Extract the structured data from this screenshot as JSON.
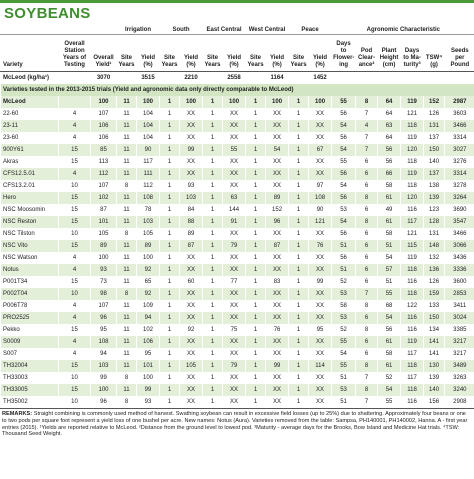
{
  "header": {
    "title": "SOYBEANS"
  },
  "table": {
    "groups": [
      {
        "label": "Irrigation",
        "start": 3
      },
      {
        "label": "South",
        "start": 5
      },
      {
        "label": "East Central",
        "start": 7
      },
      {
        "label": "West Central",
        "start": 9
      },
      {
        "label": "Peace",
        "start": 11
      },
      {
        "label": "Agronomic Characteristic",
        "start": 13
      }
    ],
    "columns": [
      "Variety",
      "Overall Station Years of Testing",
      "Overall Yield¹",
      "Site Years",
      "Yield (%)",
      "Site Years",
      "Yield (%)",
      "Site Years",
      "Yield (%)",
      "Site Years",
      "Yield (%)",
      "Site Years",
      "Yield (%)",
      "Days to Flower-ing",
      "Pod Clear-ance²",
      "Plant Height (cm)",
      "Days to Ma-turity³",
      "TSW⁴ (g)",
      "Seeds per Pound"
    ],
    "reference_row": {
      "label": "McLeod (kg/ha¹)",
      "values": [
        3070,
        3515,
        2210,
        2558,
        1164,
        1452
      ]
    },
    "section": "Varieties tested in the 2013-2015 trials (Yield and agronomic data only directly comparable to McLeod)",
    "rows": [
      [
        "McLeod",
        null,
        100,
        11,
        100,
        1,
        100,
        1,
        100,
        1,
        100,
        1,
        100,
        55,
        8,
        64,
        119,
        152,
        2987
      ],
      [
        "22-60",
        4,
        107,
        11,
        104,
        1,
        "XX",
        1,
        "XX",
        1,
        "XX",
        1,
        "XX",
        56,
        7,
        64,
        121,
        126,
        3603
      ],
      [
        "23-11",
        4,
        106,
        11,
        104,
        1,
        "XX",
        1,
        "XX",
        1,
        "XX",
        1,
        "XX",
        54,
        4,
        63,
        118,
        131,
        3466
      ],
      [
        "23-60",
        4,
        106,
        11,
        104,
        1,
        "XX",
        1,
        "XX",
        1,
        "XX",
        1,
        "XX",
        56,
        7,
        64,
        119,
        137,
        3314
      ],
      [
        "900Y61",
        15,
        85,
        11,
        90,
        1,
        99,
        1,
        55,
        1,
        54,
        1,
        67,
        54,
        7,
        56,
        120,
        150,
        3027
      ],
      [
        "Akras",
        15,
        113,
        11,
        117,
        1,
        "XX",
        1,
        "XX",
        1,
        "XX",
        1,
        "XX",
        55,
        6,
        56,
        118,
        140,
        3276
      ],
      [
        "CFS12.5.01",
        4,
        112,
        11,
        111,
        1,
        "XX",
        1,
        "XX",
        1,
        "XX",
        1,
        "XX",
        56,
        6,
        66,
        119,
        137,
        3314
      ],
      [
        "CFS13.2.01",
        10,
        107,
        8,
        112,
        1,
        93,
        1,
        "XX",
        1,
        "XX",
        1,
        97,
        54,
        6,
        58,
        118,
        138,
        3278
      ],
      [
        "Hero",
        15,
        102,
        11,
        108,
        1,
        103,
        1,
        63,
        1,
        89,
        1,
        108,
        56,
        8,
        61,
        120,
        139,
        3264
      ],
      [
        "NSC Moosomin",
        15,
        87,
        11,
        78,
        1,
        84,
        1,
        144,
        1,
        152,
        1,
        90,
        53,
        6,
        49,
        116,
        123,
        3690
      ],
      [
        "NSC Reston",
        15,
        101,
        11,
        103,
        1,
        88,
        1,
        91,
        1,
        96,
        1,
        121,
        54,
        8,
        61,
        117,
        128,
        3547
      ],
      [
        "NSC Tilston",
        10,
        105,
        8,
        105,
        1,
        89,
        1,
        "XX",
        1,
        "XX",
        1,
        "XX",
        56,
        6,
        58,
        121,
        131,
        3466
      ],
      [
        "NSC Vito",
        15,
        89,
        11,
        89,
        1,
        87,
        1,
        79,
        1,
        87,
        1,
        76,
        51,
        6,
        51,
        115,
        148,
        3066
      ],
      [
        "NSC Watson",
        4,
        100,
        11,
        100,
        1,
        "XX",
        1,
        "XX",
        1,
        "XX",
        1,
        "XX",
        56,
        6,
        54,
        119,
        132,
        3436
      ],
      [
        "Notus",
        4,
        93,
        11,
        92,
        1,
        "XX",
        1,
        "XX",
        1,
        "XX",
        1,
        "XX",
        51,
        6,
        57,
        118,
        136,
        3336
      ],
      [
        "P001T34",
        15,
        73,
        11,
        65,
        1,
        60,
        1,
        77,
        1,
        83,
        1,
        99,
        52,
        6,
        51,
        116,
        126,
        3600
      ],
      [
        "P002T04",
        10,
        98,
        8,
        92,
        1,
        "XX",
        1,
        "XX",
        1,
        "XX",
        1,
        "XX",
        53,
        7,
        55,
        118,
        159,
        2853
      ],
      [
        "P006T78",
        4,
        107,
        11,
        109,
        1,
        "XX",
        1,
        "XX",
        1,
        "XX",
        1,
        "XX",
        58,
        8,
        68,
        122,
        133,
        3411
      ],
      [
        "PRO2525",
        4,
        96,
        11,
        94,
        1,
        "XX",
        1,
        "XX",
        1,
        "XX",
        1,
        "XX",
        53,
        6,
        54,
        116,
        150,
        3024
      ],
      [
        "Pekko",
        15,
        95,
        11,
        102,
        1,
        92,
        1,
        75,
        1,
        76,
        1,
        95,
        52,
        8,
        56,
        116,
        134,
        3385
      ],
      [
        "S0009",
        4,
        108,
        11,
        106,
        1,
        "XX",
        1,
        "XX",
        1,
        "XX",
        1,
        "XX",
        55,
        6,
        61,
        119,
        141,
        3217
      ],
      [
        "S007",
        4,
        94,
        11,
        95,
        1,
        "XX",
        1,
        "XX",
        1,
        "XX",
        1,
        "XX",
        54,
        6,
        58,
        117,
        141,
        3217
      ],
      [
        "TH32004",
        15,
        103,
        11,
        101,
        1,
        105,
        1,
        79,
        1,
        99,
        1,
        114,
        55,
        8,
        61,
        118,
        130,
        3489
      ],
      [
        "TH33003",
        10,
        99,
        8,
        100,
        1,
        "XX",
        1,
        "XX",
        1,
        "XX",
        1,
        "XX",
        51,
        7,
        52,
        117,
        139,
        3263
      ],
      [
        "TH33005",
        15,
        100,
        11,
        99,
        1,
        "XX",
        1,
        "XX",
        1,
        "XX",
        1,
        "XX",
        53,
        8,
        54,
        118,
        140,
        3240
      ],
      [
        "TH35002",
        10,
        96,
        8,
        93,
        1,
        "XX",
        1,
        "XX",
        1,
        "XX",
        1,
        "XX",
        51,
        7,
        55,
        116,
        156,
        2908
      ]
    ]
  },
  "remarks": {
    "label": "REMARKS:",
    "text": "Straight combining is commonly used method of harvest. Swathing soybean can result in excessive field losses (up to 25%) due to shattering. Approximately four beans or one to two pods per square foot represent a yield loss of one bushel per acre. New names: Notus (Aura). Varieties removed from the table: Sampsa, PH140001, PH140002, Hanna. A - first year entries (2015). ¹Yields are reported relative to McLeod. ²Distance from the ground level to lowest pod. ³Maturity - average days for the Brooks, Bow Island and Medicine Hat trials. ⁴TSW: Thousand Seed Weight."
  }
}
